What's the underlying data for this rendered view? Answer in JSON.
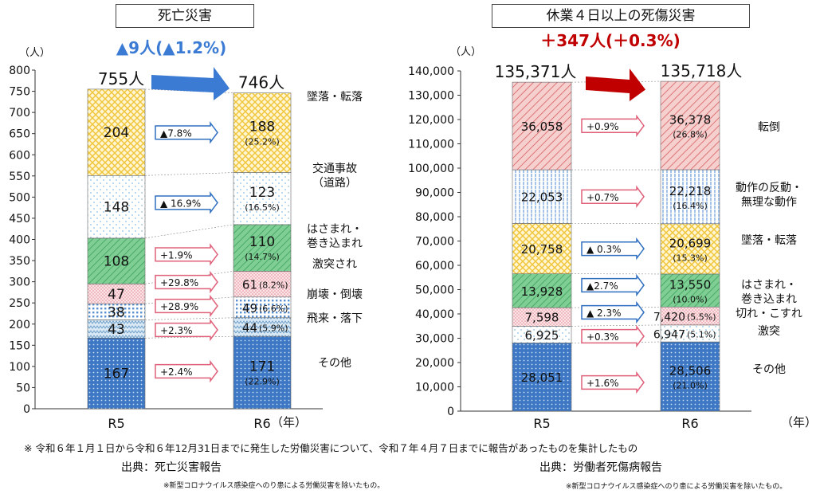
{
  "left_panel": {
    "title": "死亡災害"
  },
  "right_panel": {
    "title": "休業４日以上の死傷災害"
  },
  "chart_data": [
    {
      "type": "bar",
      "stacked": true,
      "title": "死亡災害",
      "unit_label": "（人）",
      "x_axis_unit": "（年）",
      "categories": [
        "R5",
        "R6"
      ],
      "totals": [
        755,
        746
      ],
      "total_labels": [
        "755人",
        "746人"
      ],
      "headline_change": "▲9人(▲1.2%)",
      "headline_color": "#3b7bd4",
      "ylim": [
        0,
        800
      ],
      "yticks": [
        0,
        50,
        100,
        150,
        200,
        250,
        300,
        350,
        400,
        450,
        500,
        550,
        600,
        650,
        700,
        750,
        800
      ],
      "series": [
        {
          "name": "その他",
          "values": [
            167,
            171
          ],
          "labels": [
            "167",
            "171"
          ],
          "share": "(22.9%)",
          "change": "+2.4%",
          "change_type": "up",
          "pattern": "dots",
          "color": "#3e78c4"
        },
        {
          "name": "飛来・落下",
          "values": [
            43,
            44
          ],
          "labels": [
            "43",
            "44"
          ],
          "share": "(5.9%)",
          "change": "+2.3%",
          "change_type": "up",
          "pattern": "zigzag",
          "color": "#9ec3df"
        },
        {
          "name": "崩壊・倒壊",
          "values": [
            38,
            49
          ],
          "labels": [
            "38",
            "49"
          ],
          "share": "(6.6%)",
          "change": "+28.9%",
          "change_type": "up",
          "pattern": "grid",
          "color": "#5a8fd0"
        },
        {
          "name": "激突され",
          "values": [
            47,
            61
          ],
          "labels": [
            "47",
            "61"
          ],
          "share": "(8.2%)",
          "change": "+29.8%",
          "change_type": "up",
          "pattern": "dense",
          "color": "#f2b8bf"
        },
        {
          "name": "はさまれ・\n巻き込まれ",
          "values": [
            108,
            110
          ],
          "labels": [
            "108",
            "110"
          ],
          "share": "(14.7%)",
          "change": "+1.9%",
          "change_type": "up",
          "pattern": "hatch",
          "color": "#5ec07a"
        },
        {
          "name": "交通事故\n（道路）",
          "values": [
            148,
            123
          ],
          "labels": [
            "148",
            "123"
          ],
          "share": "(16.5%)",
          "change": "▲ 16.9%",
          "change_type": "down",
          "pattern": "sparse",
          "color": "#cfe6f2"
        },
        {
          "name": "墜落・転落",
          "values": [
            204,
            188
          ],
          "labels": [
            "204",
            "188"
          ],
          "share": "(25.2%)",
          "change": "▲7.8%",
          "change_type": "down",
          "pattern": "cross",
          "color": "#f0c63a"
        }
      ]
    },
    {
      "type": "bar",
      "stacked": true,
      "title": "休業４日以上の死傷災害",
      "unit_label": "（人）",
      "x_axis_unit": "（年）",
      "categories": [
        "R5",
        "R6"
      ],
      "totals": [
        135371,
        135718
      ],
      "total_labels": [
        "135,371人",
        "135,718人"
      ],
      "headline_change": "＋347人(＋0.3%)",
      "headline_color": "#c00000",
      "ylim": [
        0,
        140000
      ],
      "yticks": [
        0,
        10000,
        20000,
        30000,
        40000,
        50000,
        60000,
        70000,
        80000,
        90000,
        100000,
        110000,
        120000,
        130000,
        140000
      ],
      "ytick_labels": [
        "0",
        "10,000",
        "20,000",
        "30,000",
        "40,000",
        "50,000",
        "60,000",
        "70,000",
        "80,000",
        "90,000",
        "100,000",
        "110,000",
        "120,000",
        "130,000",
        "140,000"
      ],
      "series": [
        {
          "name": "その他",
          "values": [
            28051,
            28506
          ],
          "labels": [
            "28,051",
            "28,506"
          ],
          "share": "(21.0%)",
          "change": "+1.6%",
          "change_type": "up",
          "pattern": "dots",
          "color": "#3e78c4"
        },
        {
          "name": "激突",
          "values": [
            6925,
            6947
          ],
          "labels": [
            "6,925",
            "6,947"
          ],
          "share": "(5.1%)",
          "change": "+0.3%",
          "change_type": "up",
          "pattern": "sparse",
          "color": "#cfe6f2"
        },
        {
          "name": "切れ・こすれ",
          "values": [
            7598,
            7420
          ],
          "labels": [
            "7,598",
            "7,420"
          ],
          "share": "(5.5%)",
          "change": "▲ 2.3%",
          "change_type": "down",
          "pattern": "dense",
          "color": "#f2b8bf"
        },
        {
          "name": "はさまれ・\n巻き込まれ",
          "values": [
            13928,
            13550
          ],
          "labels": [
            "13,928",
            "13,550"
          ],
          "share": "(10.0%)",
          "change": "▲2.7%",
          "change_type": "down",
          "pattern": "hatch",
          "color": "#5ec07a"
        },
        {
          "name": "墜落・転落",
          "values": [
            20758,
            20699
          ],
          "labels": [
            "20,758",
            "20,699"
          ],
          "share": "(15.3%)",
          "change": "▲ 0.3%",
          "change_type": "down",
          "pattern": "cross",
          "color": "#f0c63a"
        },
        {
          "name": "動作の反動・\n無理な動作",
          "values": [
            22053,
            22218
          ],
          "labels": [
            "22,053",
            "22,218"
          ],
          "share": "(16.4%)",
          "change": "+0.7%",
          "change_type": "up",
          "pattern": "vlines",
          "color": "#8fb4e3"
        },
        {
          "name": "転倒",
          "values": [
            36058,
            36378
          ],
          "labels": [
            "36,058",
            "36,378"
          ],
          "share": "(26.8%)",
          "change": "+0.9%",
          "change_type": "up",
          "pattern": "diag",
          "color": "#e27a7a"
        }
      ]
    }
  ],
  "footer": {
    "note": "※ 令和６年１月１日から令和６年12月31日までに発生した労働災害について、令和７年４月７日までに報告があったものを集計したもの",
    "source_left": "出典：死亡災害報告",
    "source_right": "出典：労働者死傷病報告",
    "exclusion_left": "※新型コロナウイルス感染症へのり患による労働災害を除いたもの。",
    "exclusion_right": "※新型コロナウイルス感染症へのり患による労働災害を除いたもの。"
  }
}
